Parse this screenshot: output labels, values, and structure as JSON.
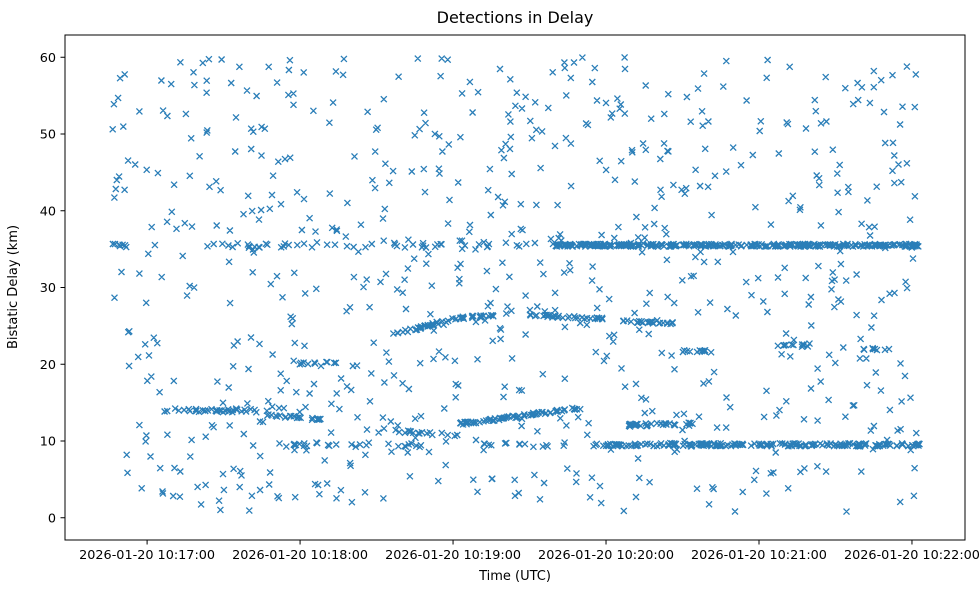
{
  "chart_data": {
    "type": "scatter",
    "title": "Detections in Delay",
    "xlabel": "Time (UTC)",
    "ylabel": "Bistatic Delay (km)",
    "marker": "x",
    "marker_color": "#1f77b4",
    "x_unit": "seconds relative to 2026-01-20 10:17:00 UTC",
    "x_axis_range": [
      -32.2,
      320.8
    ],
    "y_axis_range": [
      -2.9,
      62.9
    ],
    "x_tick_seconds": [
      0,
      60,
      120,
      180,
      240,
      300
    ],
    "x_tick_labels": [
      "2026-01-20 10:17:00",
      "2026-01-20 10:18:00",
      "2026-01-20 10:19:00",
      "2026-01-20 10:20:00",
      "2026-01-20 10:21:00",
      "2026-01-20 10:22:00"
    ],
    "y_ticks": [
      0,
      10,
      20,
      30,
      40,
      50,
      60
    ],
    "legend": "none",
    "grid": false,
    "seed": 42,
    "noise": {
      "count": 760,
      "t_range": [
        -14,
        303
      ],
      "y_range": [
        0.8,
        60.0
      ]
    },
    "bands": [
      {
        "y": 35.5,
        "t_range": [
          -14,
          -8
        ],
        "count": 7,
        "jitter": 0.25
      },
      {
        "y": 35.5,
        "t_range": [
          20,
          160
        ],
        "count": 45,
        "jitter": 0.3
      },
      {
        "y": 35.5,
        "t_range": [
          160,
          303
        ],
        "count": 320,
        "jitter": 0.18
      },
      {
        "y": 9.5,
        "t_range": [
          45,
          115
        ],
        "count": 28,
        "jitter": 0.3
      },
      {
        "y": 9.5,
        "t_range": [
          130,
          175
        ],
        "count": 15,
        "jitter": 0.3
      },
      {
        "y": 9.5,
        "t_range": [
          175,
          303
        ],
        "count": 200,
        "jitter": 0.2
      },
      {
        "y": 14.0,
        "t_range": [
          6,
          40
        ],
        "count": 35,
        "jitter": 0.25
      },
      {
        "y": 14.0,
        "t_range": [
          40,
          55
        ],
        "count": 6,
        "jitter": 0.3
      }
    ],
    "tracks": [
      {
        "t_range": [
          46,
          68
        ],
        "y_start": 13.4,
        "y_end": 12.8,
        "count": 22,
        "jitter": 0.15
      },
      {
        "t_range": [
          55,
          75
        ],
        "y_start": 19.9,
        "y_end": 20.4,
        "count": 10,
        "jitter": 0.25
      },
      {
        "t_range": [
          96,
          122
        ],
        "y_start": 11.3,
        "y_end": 10.7,
        "count": 18,
        "jitter": 0.2
      },
      {
        "t_range": [
          122,
          170
        ],
        "y_start": 12.2,
        "y_end": 14.3,
        "count": 70,
        "jitter": 0.18
      },
      {
        "t_range": [
          96,
          120
        ],
        "y_start": 23.8,
        "y_end": 25.9,
        "count": 30,
        "jitter": 0.2
      },
      {
        "t_range": [
          120,
          142
        ],
        "y_start": 25.9,
        "y_end": 26.6,
        "count": 25,
        "jitter": 0.18
      },
      {
        "t_range": [
          150,
          180
        ],
        "y_start": 26.4,
        "y_end": 25.9,
        "count": 35,
        "jitter": 0.15
      },
      {
        "t_range": [
          186,
          208
        ],
        "y_start": 25.6,
        "y_end": 25.3,
        "count": 25,
        "jitter": 0.15
      },
      {
        "t_range": [
          188,
          215
        ],
        "y_start": 12.1,
        "y_end": 12.2,
        "count": 30,
        "jitter": 0.2
      },
      {
        "t_range": [
          210,
          222
        ],
        "y_start": 21.7,
        "y_end": 21.7,
        "count": 12,
        "jitter": 0.15
      },
      {
        "t_range": [
          248,
          258
        ],
        "y_start": 22.6,
        "y_end": 22.5,
        "count": 8,
        "jitter": 0.15
      },
      {
        "t_range": [
          280,
          292
        ],
        "y_start": 22.0,
        "y_end": 21.9,
        "count": 8,
        "jitter": 0.15
      }
    ]
  }
}
